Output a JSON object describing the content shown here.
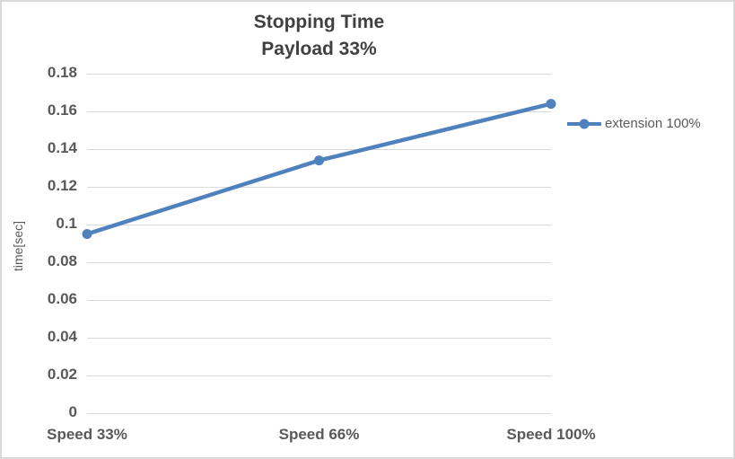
{
  "chart": {
    "title_line1": "Stopping Time",
    "title_line2": "Payload 33%",
    "y_axis_title": "time[sec]",
    "legend_label": "extension 100%"
  },
  "chart_data": {
    "type": "line",
    "title": "Stopping Time Payload 33%",
    "categories": [
      "Speed 33%",
      "Speed 66%",
      "Speed 100%"
    ],
    "series": [
      {
        "name": "extension 100%",
        "values": [
          0.095,
          0.134,
          0.164
        ]
      }
    ],
    "xlabel": "",
    "ylabel": "time[sec]",
    "ylim": [
      0,
      0.18
    ],
    "ytick_step": 0.02,
    "ytick_labels": [
      "0",
      "0.02",
      "0.04",
      "0.06",
      "0.08",
      "0.1",
      "0.12",
      "0.14",
      "0.16",
      "0.18"
    ],
    "grid": true,
    "legend_position": "right",
    "marker": "circle"
  },
  "colors": {
    "series_line": "#4f81bd",
    "gridline": "#d9d9d9",
    "axis_text": "#595959",
    "title_text": "#404040",
    "frame_border": "#d9d9d9",
    "background": "#ffffff"
  }
}
